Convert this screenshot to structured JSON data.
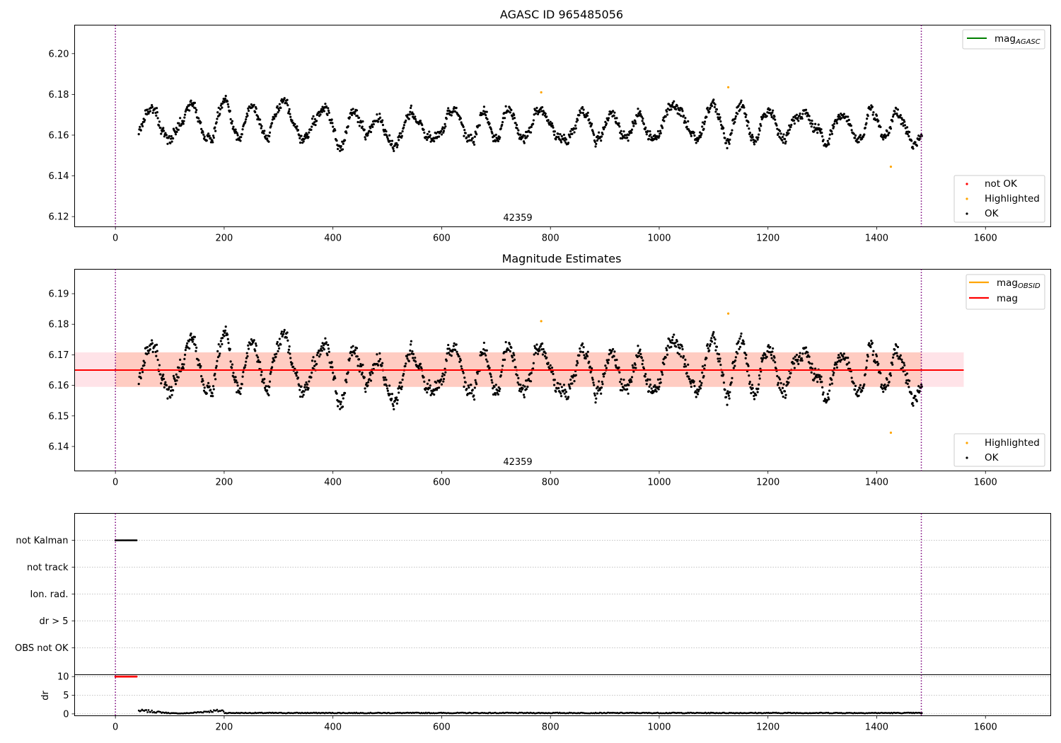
{
  "chart_data": [
    {
      "type": "scatter",
      "title": "AGASC ID 965485056",
      "xlim": [
        -75,
        1720
      ],
      "ylim": [
        6.115,
        6.214
      ],
      "xticks": [
        0,
        200,
        400,
        600,
        800,
        1000,
        1200,
        1400,
        1600
      ],
      "yticks": [
        6.12,
        6.14,
        6.16,
        6.18,
        6.2
      ],
      "ytick_labels": [
        "6.12",
        "6.14",
        "6.16",
        "6.18",
        "6.20"
      ],
      "vlines": [
        0,
        1482
      ],
      "obsid_label": "42359",
      "series": [
        {
          "name": "not OK",
          "color": "#ff0000",
          "values": []
        },
        {
          "name": "Highlighted",
          "color": "#ffa500",
          "values": [
            [
              783,
              6.181
            ],
            [
              1127,
              6.1835
            ],
            [
              1426,
              6.1445
            ]
          ]
        },
        {
          "name": "OK",
          "color": "#000000",
          "approx_range": [
            6.151,
            6.18
          ],
          "x_range": [
            43,
            1483
          ]
        }
      ],
      "reference_lines": [
        {
          "name": "mag_AGASC",
          "color": "#008000"
        }
      ],
      "legend_position": "lower-right",
      "legend2_position": "upper-right"
    },
    {
      "type": "scatter",
      "title": "Magnitude Estimates",
      "xlim": [
        -75,
        1720
      ],
      "ylim": [
        6.132,
        6.198
      ],
      "xticks": [
        0,
        200,
        400,
        600,
        800,
        1000,
        1200,
        1400,
        1600
      ],
      "yticks": [
        6.14,
        6.15,
        6.16,
        6.17,
        6.18,
        6.19
      ],
      "ytick_labels": [
        "6.14",
        "6.15",
        "6.16",
        "6.17",
        "6.18",
        "6.19"
      ],
      "vlines": [
        0,
        1482
      ],
      "obsid_label": "42359",
      "mag_obsid": {
        "name": "mag_OBSID",
        "color": "#ffa500",
        "value": 6.165,
        "band": [
          6.1595,
          6.1708
        ],
        "x_range": [
          0,
          1482
        ]
      },
      "mag": {
        "name": "mag",
        "color": "#ff0000",
        "value": 6.165,
        "band": [
          6.1595,
          6.1708
        ],
        "x_range": [
          -75,
          1560
        ]
      },
      "series": [
        {
          "name": "Highlighted",
          "color": "#ffa500",
          "values": [
            [
              783,
              6.181
            ],
            [
              1127,
              6.1835
            ],
            [
              1426,
              6.1445
            ]
          ]
        },
        {
          "name": "OK",
          "color": "#000000",
          "approx_range": [
            6.151,
            6.18
          ],
          "x_range": [
            43,
            1483
          ]
        }
      ],
      "legend_position": "lower-right",
      "legend2_position": "upper-right"
    },
    {
      "type": "scatter",
      "title": "",
      "xlim": [
        -75,
        1720
      ],
      "flag_rows": [
        "not Kalman",
        "not track",
        "Ion. rad.",
        "dr > 5",
        "OBS not OK"
      ],
      "flag_segments": [
        {
          "row": "not Kalman",
          "x_range": [
            0,
            40
          ]
        }
      ],
      "vlines": [
        0,
        1482
      ]
    },
    {
      "type": "scatter",
      "ylabel": "dr",
      "xlim": [
        -75,
        1720
      ],
      "ylim": [
        -0.5,
        10.5
      ],
      "yticks": [
        0,
        5,
        10
      ],
      "ytick_labels": [
        "0",
        "5",
        "10"
      ],
      "xticks": [
        0,
        200,
        400,
        600,
        800,
        1000,
        1200,
        1400,
        1600
      ],
      "clipped_series": {
        "color": "#ff0000",
        "x_range": [
          0,
          40
        ],
        "value": 10
      },
      "dr_series": {
        "color": "#000000",
        "x_range": [
          43,
          1483
        ],
        "approx_range": [
          0,
          1.2
        ]
      },
      "vlines": [
        0,
        1482
      ]
    }
  ]
}
